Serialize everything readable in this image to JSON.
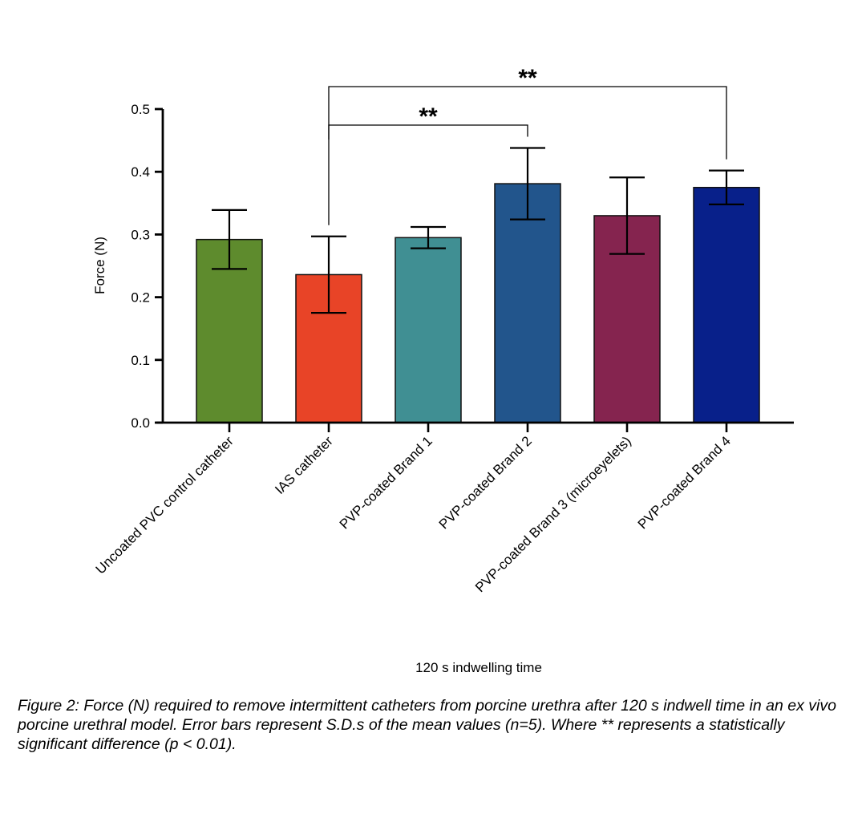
{
  "chart_data": {
    "type": "bar",
    "title": "",
    "xlabel": "120 s indwelling time",
    "ylabel": "Force (N)",
    "ylim": [
      0,
      0.5
    ],
    "yticks": [
      "0.0",
      "0.1",
      "0.2",
      "0.3",
      "0.4",
      "0.5"
    ],
    "grid": false,
    "categories": [
      "Uncoated PVC control catheter",
      "IAS catheter",
      "PVP-coated Brand 1",
      "PVP-coated Brand 2",
      "PVP-coated Brand 3 (microeyelets)",
      "PVP-coated Brand 4"
    ],
    "values": [
      0.292,
      0.236,
      0.295,
      0.381,
      0.33,
      0.375
    ],
    "errors": [
      0.047,
      0.061,
      0.017,
      0.057,
      0.061,
      0.027
    ],
    "colors": [
      "#5e8b2d",
      "#e84427",
      "#408f93",
      "#22558c",
      "#85244f",
      "#08208a"
    ],
    "significance": [
      {
        "from": 1,
        "to": 3,
        "label": "**"
      },
      {
        "from": 1,
        "to": 5,
        "label": "**"
      }
    ]
  },
  "caption": "Figure 2: Force (N) required to remove intermittent catheters from porcine urethra after 120 s indwell time in an ex vivo porcine urethral model. Error bars represent S.D.s of the mean values (n=5). Where ** represents a statistically significant difference (p < 0.01)."
}
